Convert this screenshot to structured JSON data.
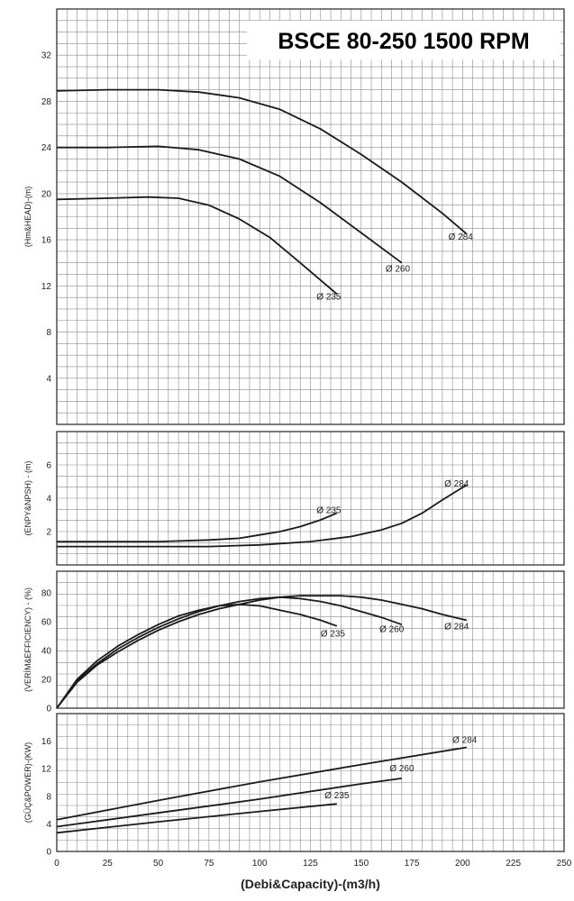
{
  "title": "BSCE 80-250 1500 RPM",
  "xlabel": "(Debi&Capacity)-(m3/h)",
  "chart_data": [
    {
      "type": "line",
      "id": "head",
      "ylabel": "(Hm&HEAD)-(m)",
      "xlim": [
        0,
        250
      ],
      "ylim": [
        0,
        36
      ],
      "yticks": [
        4,
        8,
        12,
        16,
        20,
        24,
        28,
        32
      ],
      "series": [
        {
          "name": "Ø 284",
          "label_at": [
            193,
            16.3
          ],
          "x": [
            0,
            25,
            50,
            70,
            90,
            110,
            130,
            150,
            170,
            190,
            202
          ],
          "y": [
            28.9,
            29.0,
            29.0,
            28.8,
            28.3,
            27.3,
            25.6,
            23.4,
            21.0,
            18.3,
            16.5
          ]
        },
        {
          "name": "Ø 260",
          "label_at": [
            162,
            13.5
          ],
          "x": [
            0,
            25,
            50,
            70,
            90,
            110,
            130,
            150,
            170
          ],
          "y": [
            24.0,
            24.0,
            24.1,
            23.8,
            23.0,
            21.5,
            19.2,
            16.6,
            14.0
          ]
        },
        {
          "name": "Ø 235",
          "label_at": [
            128,
            11.1
          ],
          "x": [
            0,
            25,
            45,
            60,
            75,
            90,
            105,
            120,
            138
          ],
          "y": [
            19.5,
            19.6,
            19.7,
            19.6,
            19.0,
            17.8,
            16.2,
            14.0,
            11.3
          ]
        }
      ]
    },
    {
      "type": "line",
      "id": "npsh",
      "ylabel": "(ENPY&NPSH) - (m)",
      "xlim": [
        0,
        250
      ],
      "ylim": [
        0,
        8
      ],
      "yticks": [
        2,
        4,
        6
      ],
      "series": [
        {
          "name": "Ø 235",
          "label_at": [
            128,
            3.3
          ],
          "x": [
            0,
            25,
            50,
            75,
            90,
            100,
            110,
            120,
            130,
            138
          ],
          "y": [
            1.4,
            1.4,
            1.4,
            1.5,
            1.6,
            1.8,
            2.0,
            2.3,
            2.7,
            3.1
          ]
        },
        {
          "name": "Ø 284",
          "label_at": [
            191,
            4.9
          ],
          "x": [
            0,
            25,
            50,
            75,
            100,
            125,
            145,
            160,
            170,
            180,
            190,
            202
          ],
          "y": [
            1.1,
            1.1,
            1.1,
            1.1,
            1.2,
            1.4,
            1.7,
            2.1,
            2.5,
            3.1,
            3.9,
            4.8
          ]
        }
      ]
    },
    {
      "type": "line",
      "id": "efficiency",
      "ylabel": "(VERİM&EFFICIENCY) - (%)",
      "xlim": [
        0,
        250
      ],
      "ylim": [
        0,
        95
      ],
      "yticks": [
        0,
        20,
        40,
        60,
        80
      ],
      "series": [
        {
          "name": "Ø 235",
          "label_at": [
            130,
            52
          ],
          "x": [
            0,
            10,
            20,
            30,
            40,
            50,
            60,
            70,
            80,
            90,
            100,
            110,
            120,
            130,
            138
          ],
          "y": [
            0,
            20,
            33,
            43,
            51,
            58,
            64,
            68,
            71,
            72,
            71,
            68,
            65,
            61,
            57
          ]
        },
        {
          "name": "Ø 260",
          "label_at": [
            159,
            55
          ],
          "x": [
            0,
            10,
            20,
            30,
            40,
            50,
            60,
            70,
            80,
            90,
            100,
            110,
            120,
            130,
            140,
            150,
            160,
            170
          ],
          "y": [
            0,
            19,
            31,
            41,
            49,
            56,
            62,
            67,
            71,
            74,
            76,
            77,
            76,
            74,
            71,
            67,
            63,
            58
          ]
        },
        {
          "name": "Ø 284",
          "label_at": [
            191,
            57
          ],
          "x": [
            0,
            10,
            20,
            30,
            40,
            50,
            60,
            70,
            80,
            90,
            100,
            110,
            120,
            130,
            140,
            150,
            160,
            170,
            180,
            190,
            202
          ],
          "y": [
            0,
            18,
            30,
            39,
            47,
            54,
            60,
            65,
            69,
            72,
            75,
            77,
            78,
            78,
            78,
            77,
            75,
            72,
            69,
            65,
            61
          ]
        }
      ]
    },
    {
      "type": "line",
      "id": "power",
      "ylabel": "(GÜÇ&POWER)-(KW)",
      "xlim": [
        0,
        250
      ],
      "ylim": [
        0,
        20
      ],
      "yticks": [
        0,
        4,
        8,
        12,
        16
      ],
      "series": [
        {
          "name": "Ø 284",
          "label_at": [
            195,
            16.2
          ],
          "x": [
            0,
            50,
            100,
            150,
            202
          ],
          "y": [
            4.6,
            7.4,
            10.1,
            12.6,
            15.1
          ]
        },
        {
          "name": "Ø 260",
          "label_at": [
            164,
            12.1
          ],
          "x": [
            0,
            50,
            100,
            150,
            170
          ],
          "y": [
            3.6,
            5.6,
            7.6,
            9.8,
            10.6
          ]
        },
        {
          "name": "Ø 235",
          "label_at": [
            132,
            8.2
          ],
          "x": [
            0,
            50,
            100,
            138
          ],
          "y": [
            2.7,
            4.3,
            5.8,
            6.9
          ]
        }
      ]
    }
  ],
  "xticks": [
    0,
    25,
    50,
    75,
    100,
    125,
    150,
    175,
    200,
    225,
    250
  ],
  "colors": {
    "grid": "#8a8a8a",
    "frame": "#333333",
    "curve": "#1a1a1a",
    "background": "#ffffff"
  }
}
